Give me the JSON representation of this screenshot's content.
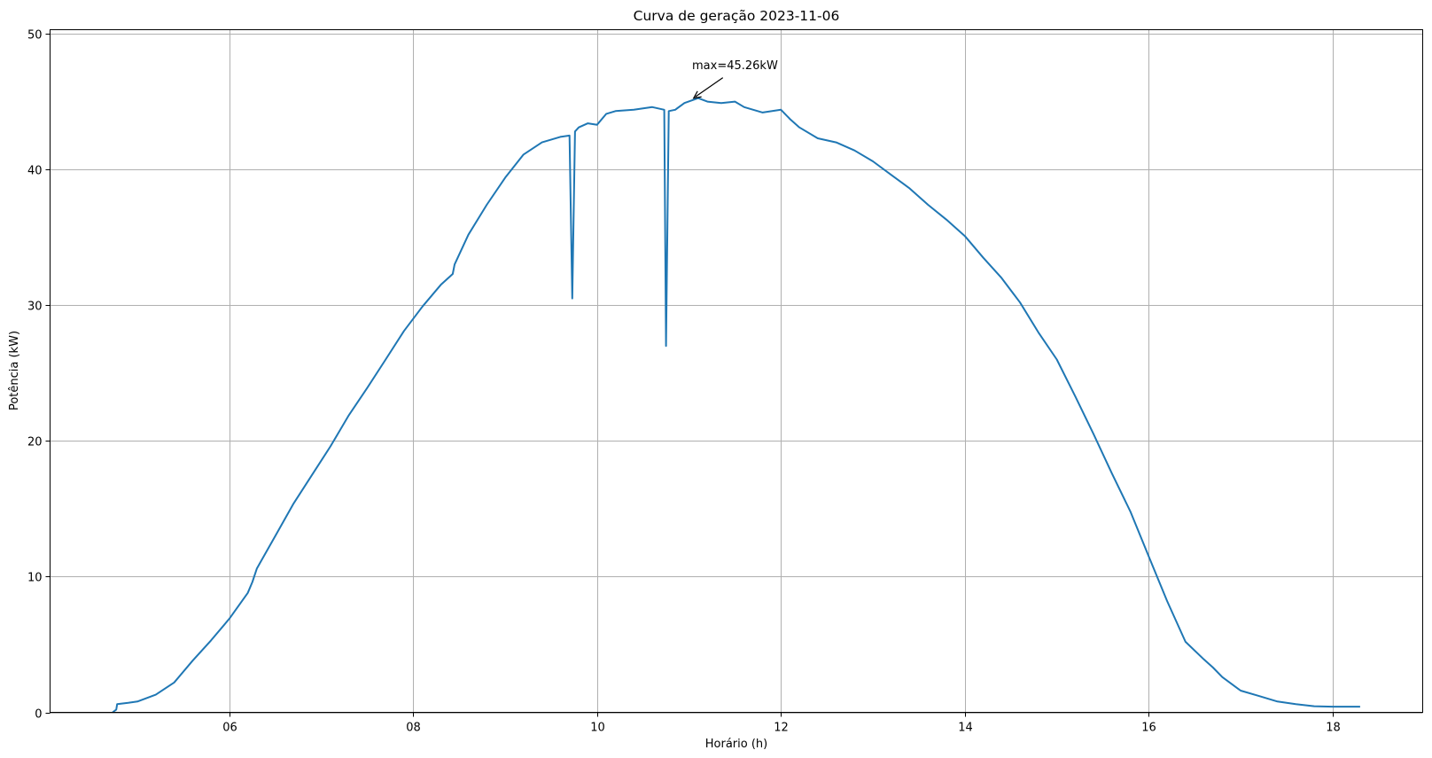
{
  "chart_data": {
    "type": "line",
    "title": "Curva de geração 2023-11-06",
    "xlabel": "Horário (h)",
    "ylabel": "Potência (kW)",
    "xlim": [
      4.05,
      18.98
    ],
    "ylim": [
      0,
      50.3
    ],
    "xticks": [
      {
        "value": 6,
        "label": "06"
      },
      {
        "value": 8,
        "label": "08"
      },
      {
        "value": 10,
        "label": "10"
      },
      {
        "value": 12,
        "label": "12"
      },
      {
        "value": 14,
        "label": "14"
      },
      {
        "value": 16,
        "label": "16"
      },
      {
        "value": 18,
        "label": "18"
      }
    ],
    "yticks": [
      0,
      10,
      20,
      30,
      40,
      50
    ],
    "grid": true,
    "legend": "none",
    "series": [
      {
        "color": "#1f77b4",
        "x": [
          4.73,
          4.77,
          4.78,
          4.9,
          5.0,
          5.2,
          5.4,
          5.6,
          5.8,
          6.0,
          6.2,
          6.25,
          6.3,
          6.5,
          6.7,
          6.9,
          7.1,
          7.3,
          7.5,
          7.7,
          7.9,
          8.1,
          8.3,
          8.43,
          8.45,
          8.6,
          8.8,
          9.0,
          9.2,
          9.4,
          9.6,
          9.7,
          9.73,
          9.76,
          9.8,
          9.9,
          10.0,
          10.1,
          10.2,
          10.4,
          10.6,
          10.73,
          10.75,
          10.78,
          10.85,
          10.95,
          11.1,
          11.2,
          11.35,
          11.5,
          11.6,
          11.8,
          12.0,
          12.1,
          12.2,
          12.4,
          12.6,
          12.8,
          13.0,
          13.2,
          13.4,
          13.6,
          13.8,
          14.0,
          14.2,
          14.4,
          14.6,
          14.8,
          15.0,
          15.2,
          15.4,
          15.6,
          15.8,
          16.0,
          16.2,
          16.4,
          16.6,
          16.7,
          16.8,
          17.0,
          17.2,
          17.4,
          17.6,
          17.8,
          18.0,
          18.2,
          18.3
        ],
        "y": [
          0.0,
          0.2,
          0.6,
          0.7,
          0.8,
          1.3,
          2.2,
          3.8,
          5.3,
          6.9,
          8.8,
          9.6,
          10.6,
          13.0,
          15.4,
          17.5,
          19.6,
          21.9,
          23.9,
          26.0,
          28.1,
          29.9,
          31.5,
          32.3,
          33.0,
          35.2,
          37.4,
          39.4,
          41.1,
          42.0,
          42.4,
          42.5,
          30.5,
          42.8,
          43.1,
          43.4,
          43.3,
          44.1,
          44.3,
          44.4,
          44.6,
          44.4,
          27.0,
          44.3,
          44.4,
          44.9,
          45.26,
          45.0,
          44.9,
          45.0,
          44.6,
          44.2,
          44.4,
          43.7,
          43.1,
          42.3,
          42.0,
          41.4,
          40.6,
          39.6,
          38.6,
          37.4,
          36.3,
          35.1,
          33.5,
          32.0,
          30.2,
          28.0,
          26.0,
          23.3,
          20.5,
          17.6,
          14.8,
          11.5,
          8.2,
          5.2,
          3.9,
          3.3,
          2.6,
          1.6,
          1.2,
          0.8,
          0.6,
          0.45,
          0.42,
          0.42,
          0.42
        ]
      }
    ],
    "annotation": {
      "text": "max=45.26kW",
      "x": 11.05,
      "y": 45.26
    }
  }
}
